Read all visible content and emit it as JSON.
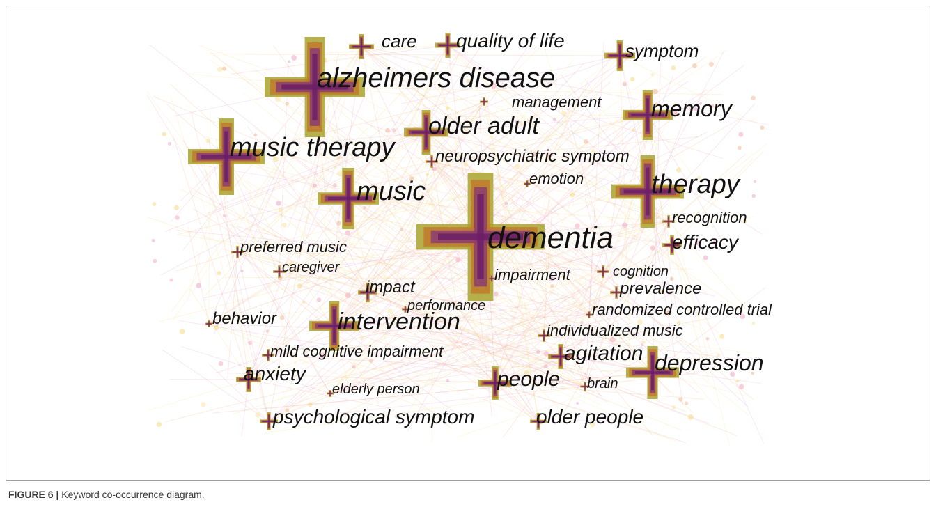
{
  "caption": {
    "label": "FIGURE 6 |",
    "text": "Keyword co-occurrence diagram."
  },
  "nodes": [
    {
      "label": "care"
    },
    {
      "label": "quality of life"
    },
    {
      "label": "symptom"
    },
    {
      "label": "alzheimers disease"
    },
    {
      "label": "management"
    },
    {
      "label": "memory"
    },
    {
      "label": "older adult"
    },
    {
      "label": "music therapy"
    },
    {
      "label": "neuropsychiatric symptom"
    },
    {
      "label": "emotion"
    },
    {
      "label": "therapy"
    },
    {
      "label": "music"
    },
    {
      "label": "recognition"
    },
    {
      "label": "dementia"
    },
    {
      "label": "efficacy"
    },
    {
      "label": "preferred music"
    },
    {
      "label": "caregiver"
    },
    {
      "label": "cognition"
    },
    {
      "label": "impairment"
    },
    {
      "label": "impact"
    },
    {
      "label": "prevalence"
    },
    {
      "label": "performance"
    },
    {
      "label": "randomized controlled trial"
    },
    {
      "label": "behavior"
    },
    {
      "label": "intervention"
    },
    {
      "label": "individualized music"
    },
    {
      "label": "mild cognitive impairment"
    },
    {
      "label": "agitation"
    },
    {
      "label": "depression"
    },
    {
      "label": "anxiety"
    },
    {
      "label": "people"
    },
    {
      "label": "brain"
    },
    {
      "label": "elderly person"
    },
    {
      "label": "psychological symptom"
    },
    {
      "label": "older people"
    }
  ]
}
